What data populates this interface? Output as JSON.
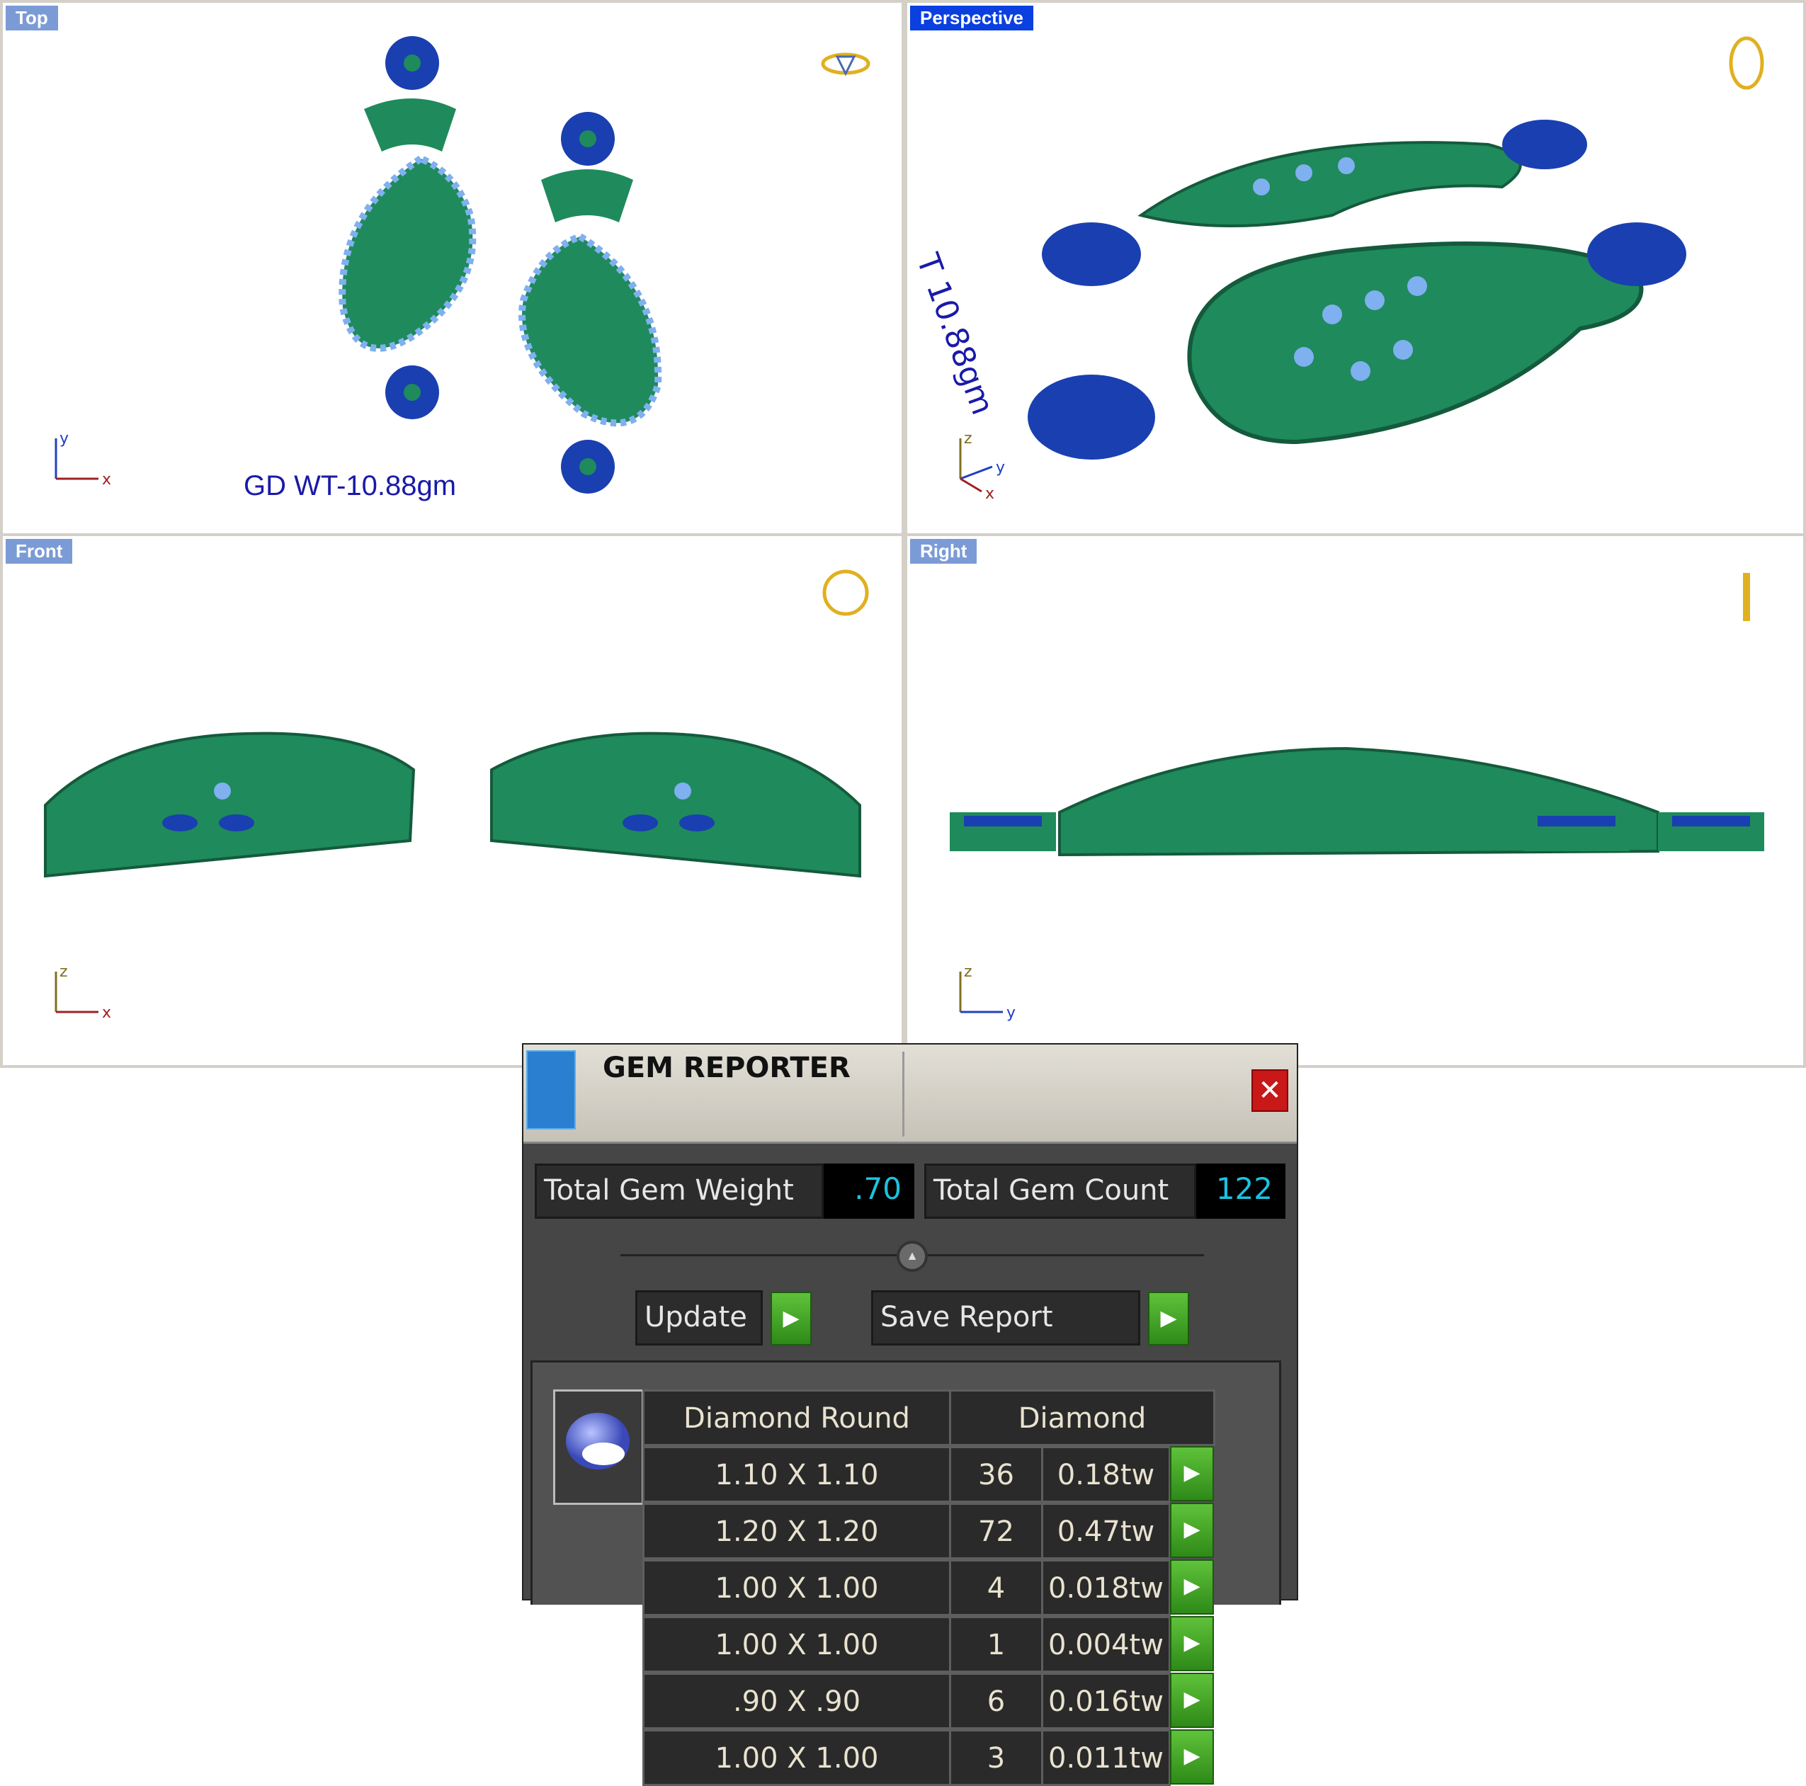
{
  "viewports": {
    "top": {
      "label": "Top",
      "note": "GD WT-10.88gm",
      "axes": [
        "y",
        "x"
      ]
    },
    "perspective": {
      "label": "Perspective",
      "note_fragment": "T 10.88gm",
      "axes": [
        "z",
        "y",
        "x"
      ]
    },
    "front": {
      "label": "Front",
      "axes": [
        "z",
        "x"
      ]
    },
    "right": {
      "label": "Right",
      "axes": [
        "z",
        "y"
      ]
    }
  },
  "colors": {
    "metal": "#1f8a5c",
    "gem_light": "#7fb0ef",
    "gem_dark": "#1a3fb0",
    "active_label": "#0a3fe0",
    "label": "#7b9bd6"
  },
  "gem_reporter": {
    "title": "GEM REPORTER",
    "close_icon": "close-icon",
    "total_weight_label": "Total Gem Weight",
    "total_weight_value": ".70",
    "total_count_label": "Total Gem Count",
    "total_count_value": "122",
    "update_label": "Update",
    "save_label": "Save Report",
    "table": {
      "header_shape": "Diamond Round",
      "header_type": "Diamond",
      "rows": [
        {
          "size": "1.10 X 1.10",
          "count": "36",
          "weight": "0.18tw"
        },
        {
          "size": "1.20 X 1.20",
          "count": "72",
          "weight": "0.47tw"
        },
        {
          "size": "1.00 X 1.00",
          "count": "4",
          "weight": "0.018tw"
        },
        {
          "size": "1.00 X 1.00",
          "count": "1",
          "weight": "0.004tw"
        },
        {
          "size": ".90 X .90",
          "count": "6",
          "weight": "0.016tw"
        },
        {
          "size": "1.00 X 1.00",
          "count": "3",
          "weight": "0.011tw"
        }
      ]
    }
  }
}
